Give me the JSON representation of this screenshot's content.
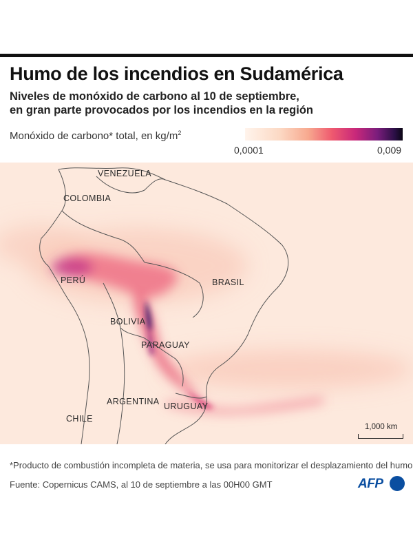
{
  "title": "Humo de los incendios en Sudamérica",
  "subtitle": [
    "Niveles de monóxido de carbono al 10 de septiembre,",
    "en gran parte provocados por los incendios en la región"
  ],
  "legend": {
    "label": "Monóxido de carbono* total, en kg/m",
    "label_sup": "2",
    "min": "0,0001",
    "max": "0,009",
    "colors": [
      "#fff4ec",
      "#fcd9c4",
      "#f7a98f",
      "#ef5a6f",
      "#c9287a",
      "#7a1d7c",
      "#2a0f45",
      "#0b0614"
    ]
  },
  "countries": {
    "venezuela": "VENEZUELA",
    "colombia": "COLOMBIA",
    "peru": "PERÚ",
    "brasil": "BRASIL",
    "bolivia": "BOLIVIA",
    "paraguay": "PARAGUAY",
    "argentina": "ARGENTINA",
    "uruguay": "URUGUAY",
    "chile": "CHILE"
  },
  "scale": "1,000 km",
  "footnote": "*Producto de combustión incompleta de materia, se usa para monitorizar el desplazamiento del humo",
  "source": "Fuente: Copernicus CAMS, al 10 de septiembre a las 00H00 GMT",
  "logo": "AFP"
}
